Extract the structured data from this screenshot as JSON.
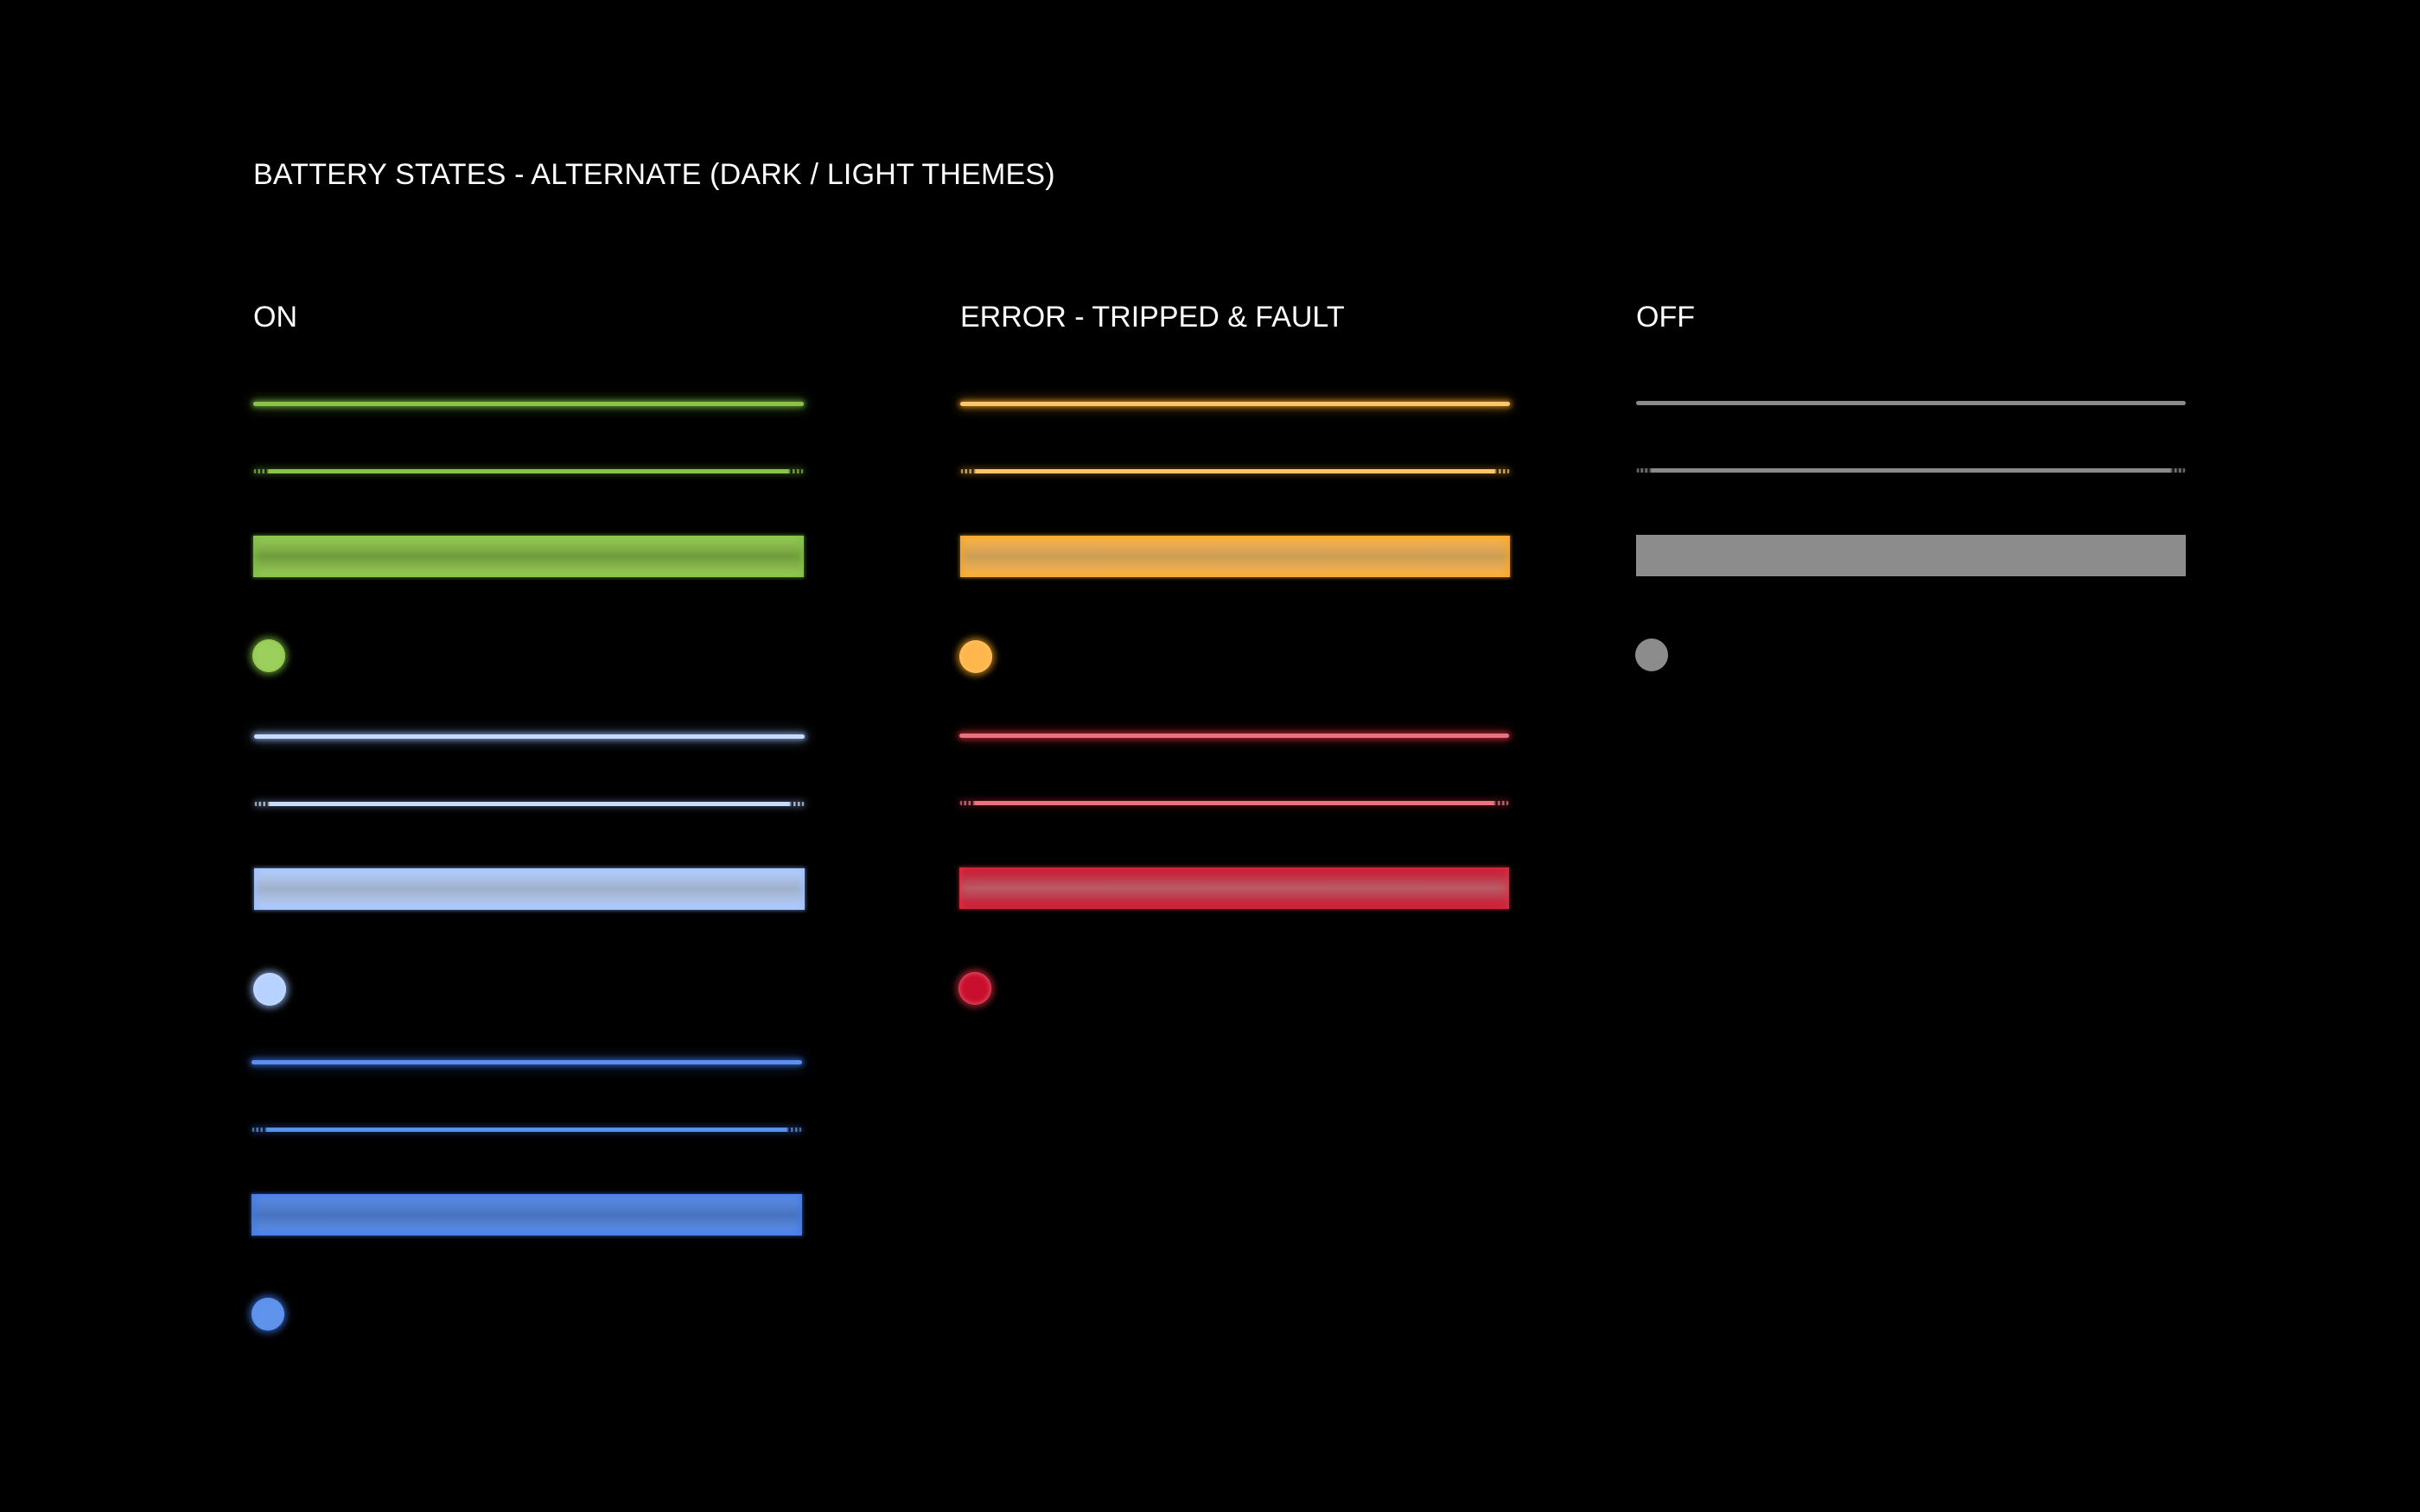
{
  "page": {
    "title": "BATTERY STATES - ALTERNATE (DARK / LIGHT THEMES)"
  },
  "columns": [
    {
      "key": "on",
      "heading": "ON",
      "groups": [
        {
          "name": "green",
          "color": "#8bc34a",
          "fill": "#9ccf5c",
          "glow": "#7cc043"
        },
        {
          "name": "light-blue",
          "color": "#c8dcff",
          "fill": "#b7d2ff",
          "glow": "#9fc0ff"
        },
        {
          "name": "blue",
          "color": "#5b8ff0",
          "fill": "#5f93ec",
          "glow": "#3e77e8"
        }
      ]
    },
    {
      "key": "error",
      "heading": "ERROR - TRIPPED & FAULT",
      "groups": [
        {
          "name": "amber",
          "color": "#ffc56a",
          "fill": "#ffb74d",
          "glow": "#f5a623"
        },
        {
          "name": "red",
          "color": "#e8737f",
          "fill": "#c8102e",
          "glow": "#d9303f"
        }
      ]
    },
    {
      "key": "off",
      "heading": "OFF",
      "groups": [
        {
          "name": "gray",
          "color": "#8a8a8a",
          "fill": "#8c8c8c",
          "glow": "none"
        }
      ]
    }
  ]
}
